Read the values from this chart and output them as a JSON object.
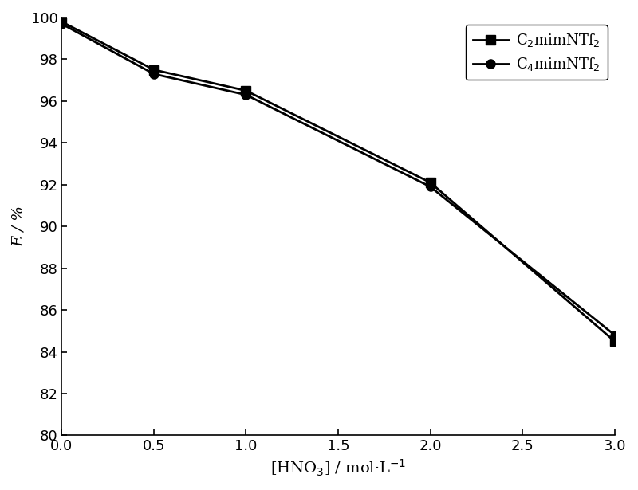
{
  "x": [
    0.0,
    0.5,
    1.0,
    2.0,
    3.0
  ],
  "y_c2": [
    99.8,
    97.5,
    96.5,
    92.1,
    84.5
  ],
  "y_c4": [
    99.7,
    97.3,
    96.3,
    91.9,
    84.8
  ],
  "xlabel": "[HNO$_3$] / mol·L$^{-1}$",
  "ylabel": "E / %",
  "xlim": [
    0.0,
    3.0
  ],
  "ylim": [
    80,
    100
  ],
  "yticks": [
    80,
    82,
    84,
    86,
    88,
    90,
    92,
    94,
    96,
    98,
    100
  ],
  "xticks": [
    0.0,
    0.5,
    1.0,
    1.5,
    2.0,
    2.5,
    3.0
  ],
  "line_color": "#000000",
  "label_c2": "C$_2$mimNTf$_2$",
  "label_c4": "C$_4$mimNTf$_2$",
  "linewidth": 2.0,
  "marker_size_square": 8,
  "marker_size_circle": 8
}
